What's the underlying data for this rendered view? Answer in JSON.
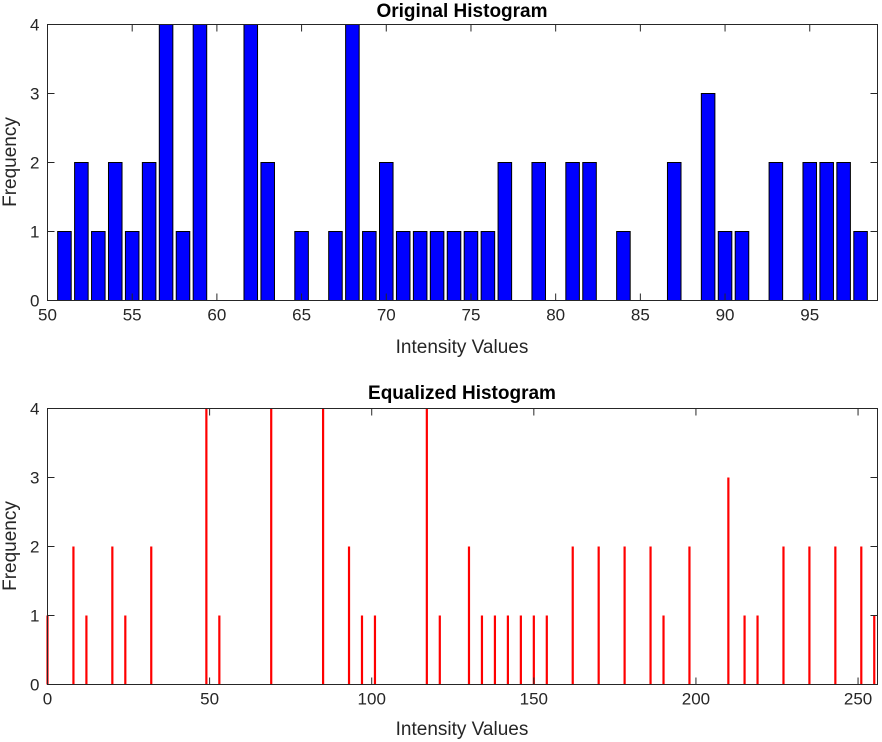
{
  "chart_data": [
    {
      "type": "bar",
      "title": "Original Histogram",
      "xlabel": "Intensity Values",
      "ylabel": "Frequency",
      "xlim": [
        50,
        99
      ],
      "ylim": [
        0,
        4
      ],
      "xticks": [
        50,
        55,
        60,
        65,
        70,
        75,
        80,
        85,
        90,
        95
      ],
      "yticks": [
        0,
        1,
        2,
        3,
        4
      ],
      "bar_color": "#0000ff",
      "grid": false,
      "x": [
        51,
        52,
        53,
        54,
        55,
        56,
        57,
        58,
        59,
        62,
        63,
        65,
        67,
        68,
        69,
        70,
        71,
        72,
        73,
        74,
        75,
        76,
        77,
        79,
        81,
        82,
        84,
        87,
        89,
        90,
        91,
        93,
        95,
        96,
        97,
        98
      ],
      "values": [
        1,
        2,
        1,
        2,
        1,
        2,
        4,
        1,
        4,
        4,
        2,
        1,
        1,
        4,
        1,
        2,
        1,
        1,
        1,
        1,
        1,
        1,
        2,
        2,
        2,
        2,
        1,
        2,
        3,
        1,
        1,
        2,
        2,
        2,
        2,
        1
      ]
    },
    {
      "type": "bar",
      "title": "Equalized Histogram",
      "xlabel": "Intensity Values",
      "ylabel": "Frequency",
      "xlim": [
        0,
        256
      ],
      "ylim": [
        0,
        4
      ],
      "xticks": [
        0,
        50,
        100,
        150,
        200,
        250
      ],
      "yticks": [
        0,
        1,
        2,
        3,
        4
      ],
      "bar_color": "#ff0000",
      "grid": false,
      "x": [
        0,
        8,
        12,
        20,
        24,
        32,
        49,
        53,
        69,
        85,
        93,
        97,
        101,
        117,
        121,
        130,
        134,
        138,
        142,
        146,
        150,
        154,
        162,
        170,
        178,
        186,
        190,
        198,
        210,
        215,
        219,
        227,
        235,
        243,
        251,
        255
      ],
      "values": [
        1,
        2,
        1,
        2,
        1,
        2,
        4,
        1,
        4,
        4,
        2,
        1,
        1,
        4,
        1,
        2,
        1,
        1,
        1,
        1,
        1,
        1,
        2,
        2,
        2,
        2,
        1,
        2,
        3,
        1,
        1,
        2,
        2,
        2,
        2,
        1
      ]
    }
  ]
}
